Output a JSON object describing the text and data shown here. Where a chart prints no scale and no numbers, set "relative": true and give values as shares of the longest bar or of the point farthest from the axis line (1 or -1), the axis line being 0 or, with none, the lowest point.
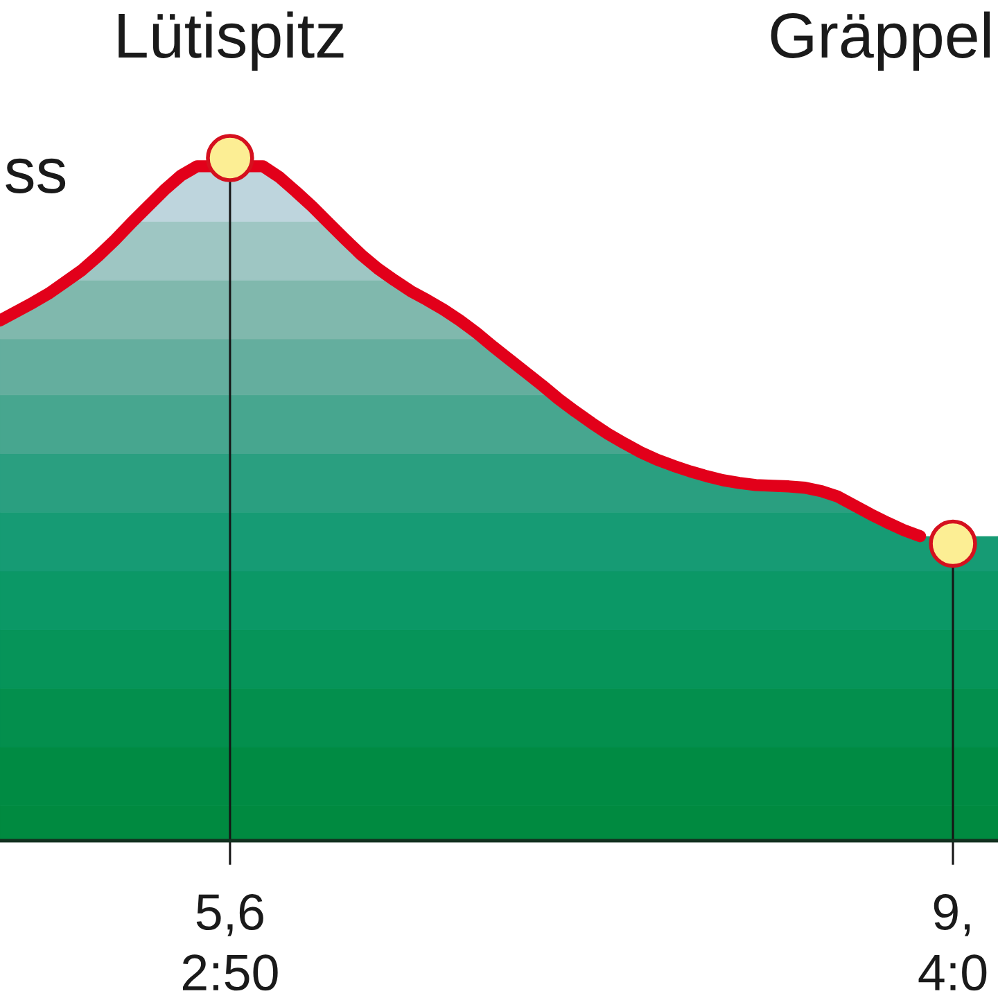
{
  "chart_data": {
    "type": "line",
    "relative": true,
    "tick_labels": "x",
    "categories": [
      null,
      null,
      null,
      null,
      null,
      null,
      null,
      null,
      null,
      null,
      null,
      null,
      null,
      null,
      "5,6\n2:50",
      null,
      null,
      null,
      null,
      null,
      null,
      null,
      null,
      null,
      null,
      null,
      null,
      null,
      null,
      null,
      null,
      null,
      null,
      null,
      null,
      null,
      null,
      null,
      null,
      null,
      null,
      null,
      null,
      null,
      null,
      null,
      null,
      null,
      null,
      null,
      null,
      null,
      null,
      null,
      null,
      null,
      null,
      null,
      "9,\n4:0"
    ],
    "series": [
      {
        "color": "#e2001a",
        "values": [
          0.762,
          0.775,
          0.788,
          0.802,
          0.819,
          0.836,
          0.857,
          0.88,
          0.905,
          0.929,
          0.953,
          0.974,
          0.988,
          null,
          null,
          null,
          0.988,
          0.972,
          0.951,
          0.929,
          0.905,
          0.881,
          0.858,
          0.838,
          0.821,
          0.805,
          0.792,
          0.778,
          0.762,
          0.744,
          0.724,
          0.705,
          0.686,
          0.667,
          0.647,
          0.629,
          0.612,
          0.596,
          0.582,
          0.569,
          0.558,
          0.549,
          0.541,
          0.534,
          0.528,
          0.524,
          0.521,
          0.52,
          0.519,
          0.517,
          0.512,
          0.504,
          0.491,
          0.478,
          0.466,
          0.455,
          0.446,
          null,
          null
        ]
      },
      {
        "type": "lollipop",
        "color": "#fcee94",
        "marker": "circle",
        "values": [
          null,
          null,
          null,
          null,
          null,
          null,
          null,
          null,
          null,
          null,
          null,
          null,
          null,
          null,
          1.0,
          null,
          null,
          null,
          null,
          null,
          null,
          null,
          null,
          null,
          null,
          null,
          null,
          null,
          null,
          null,
          null,
          null,
          null,
          null,
          null,
          null,
          null,
          null,
          null,
          null,
          null,
          null,
          null,
          null,
          null,
          null,
          null,
          null,
          null,
          null,
          null,
          null,
          null,
          null,
          null,
          null,
          null,
          null,
          0.435
        ]
      }
    ],
    "bands": [
      {
        "axis": "y",
        "from": 0.0,
        "to": 0.051,
        "color": "#008a40"
      },
      {
        "axis": "y",
        "from": 0.051,
        "to": 0.137,
        "color": "#008b43"
      },
      {
        "axis": "y",
        "from": 0.137,
        "to": 0.223,
        "color": "#038f4d"
      },
      {
        "axis": "y",
        "from": 0.223,
        "to": 0.309,
        "color": "#069459"
      },
      {
        "axis": "y",
        "from": 0.309,
        "to": 0.395,
        "color": "#0b9866"
      },
      {
        "axis": "y",
        "from": 0.395,
        "to": 0.481,
        "color": "#169b74"
      },
      {
        "axis": "y",
        "from": 0.481,
        "to": 0.567,
        "color": "#2a9f80"
      },
      {
        "axis": "y",
        "from": 0.567,
        "to": 0.653,
        "color": "#47a68f"
      },
      {
        "axis": "y",
        "from": 0.653,
        "to": 0.735,
        "color": "#64ae9e"
      },
      {
        "axis": "y",
        "from": 0.735,
        "to": 0.821,
        "color": "#80b8ad"
      },
      {
        "axis": "y",
        "from": 0.821,
        "to": 0.907,
        "color": "#9ec6c3"
      },
      {
        "axis": "y",
        "from": 0.907,
        "to": 1.0,
        "color": "#bed5dd"
      }
    ],
    "annotations": [
      "Lütispitz",
      "Gräppel",
      "ss"
    ]
  }
}
